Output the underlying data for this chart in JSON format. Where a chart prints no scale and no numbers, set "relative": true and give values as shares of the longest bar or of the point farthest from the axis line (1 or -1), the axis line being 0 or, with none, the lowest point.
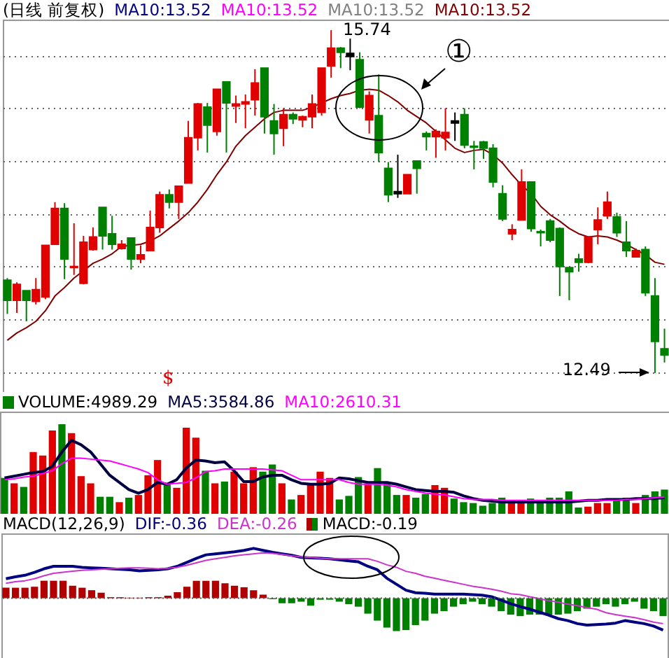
{
  "chart_data": [
    {
      "type": "candlestick",
      "title": "(日线 前复权)",
      "categories": [
        null,
        null,
        null,
        null,
        null,
        null,
        null,
        null,
        null,
        null,
        null,
        null,
        null,
        null,
        null,
        null,
        null,
        null,
        null,
        null,
        null,
        null,
        null,
        null,
        null,
        null,
        null,
        null,
        null,
        null,
        null,
        null,
        null,
        null,
        null,
        null,
        null,
        null,
        null,
        null,
        null,
        null,
        null,
        null,
        null,
        null,
        null,
        null,
        null,
        null,
        null,
        null,
        null,
        null,
        null,
        null,
        null,
        null,
        null,
        null,
        null,
        null,
        null,
        null,
        null,
        null,
        null,
        null,
        null,
        null
      ],
      "ohlc": [
        [
          13.37,
          13.39,
          13.05,
          13.18
        ],
        [
          13.18,
          13.35,
          13.06,
          13.33
        ],
        [
          13.27,
          13.27,
          12.98,
          13.18
        ],
        [
          13.17,
          13.39,
          13.14,
          13.28
        ],
        [
          13.21,
          13.7,
          13.19,
          13.7
        ],
        [
          13.71,
          14.11,
          13.71,
          14.05
        ],
        [
          14.05,
          14.1,
          13.38,
          13.57
        ],
        [
          13.49,
          13.91,
          13.42,
          13.5
        ],
        [
          13.34,
          13.79,
          13.33,
          13.73
        ],
        [
          13.66,
          13.87,
          13.65,
          13.78
        ],
        [
          14.06,
          14.06,
          13.66,
          13.79
        ],
        [
          13.81,
          13.98,
          13.66,
          13.71
        ],
        [
          13.67,
          13.75,
          13.66,
          13.71
        ],
        [
          13.77,
          13.77,
          13.47,
          13.57
        ],
        [
          13.57,
          13.7,
          13.53,
          13.61
        ],
        [
          13.65,
          14.03,
          13.65,
          13.87
        ],
        [
          13.87,
          14.21,
          13.82,
          14.18
        ],
        [
          14.18,
          14.23,
          14.05,
          14.11
        ],
        [
          14.11,
          14.26,
          13.95,
          14.26
        ],
        [
          14.29,
          14.88,
          14.29,
          14.72
        ],
        [
          14.72,
          15.05,
          14.6,
          15.04
        ],
        [
          15.01,
          15.05,
          14.58,
          14.84
        ],
        [
          14.78,
          15.18,
          14.74,
          15.18
        ],
        [
          15.25,
          15.25,
          14.58,
          15.05
        ],
        [
          15.02,
          15.12,
          14.86,
          15.04
        ],
        [
          15.04,
          15.13,
          14.81,
          15.06
        ],
        [
          15.08,
          15.37,
          14.93,
          15.24
        ],
        [
          15.38,
          15.38,
          14.76,
          14.92
        ],
        [
          14.88,
          15.04,
          14.56,
          14.76
        ],
        [
          14.81,
          15.0,
          14.64,
          14.94
        ],
        [
          14.94,
          14.96,
          14.85,
          14.9
        ],
        [
          14.89,
          14.93,
          14.82,
          14.92
        ],
        [
          14.92,
          15.13,
          14.81,
          15.04
        ],
        [
          14.96,
          15.38,
          14.93,
          15.38
        ],
        [
          15.4,
          15.74,
          15.29,
          15.57
        ],
        [
          15.57,
          15.58,
          15.38,
          15.53
        ],
        [
          15.52,
          15.66,
          15.36,
          15.49
        ],
        [
          15.46,
          15.53,
          15.0,
          15.01
        ],
        [
          14.89,
          15.16,
          14.76,
          15.12
        ],
        [
          14.93,
          15.32,
          14.49,
          14.58
        ],
        [
          14.43,
          14.49,
          14.11,
          14.18
        ],
        [
          14.21,
          14.56,
          14.15,
          14.19
        ],
        [
          14.19,
          14.37,
          14.19,
          14.37
        ],
        [
          14.5,
          14.5,
          14.19,
          14.43
        ],
        [
          14.76,
          14.78,
          14.6,
          14.73
        ],
        [
          14.73,
          14.8,
          14.53,
          14.78
        ],
        [
          14.72,
          15.0,
          14.6,
          14.77
        ],
        [
          14.88,
          14.96,
          14.69,
          14.86
        ],
        [
          14.94,
          15.0,
          14.62,
          14.65
        ],
        [
          14.64,
          14.69,
          14.42,
          14.63
        ],
        [
          14.68,
          14.69,
          14.52,
          14.62
        ],
        [
          14.62,
          14.66,
          14.25,
          14.3
        ],
        [
          14.19,
          14.27,
          13.93,
          13.95
        ],
        [
          13.81,
          13.9,
          13.75,
          13.85
        ],
        [
          13.94,
          14.42,
          13.94,
          14.3
        ],
        [
          14.3,
          14.3,
          13.83,
          13.86
        ],
        [
          13.83,
          13.85,
          13.69,
          13.82
        ],
        [
          13.93,
          13.95,
          13.73,
          13.75
        ],
        [
          13.86,
          13.87,
          13.22,
          13.5
        ],
        [
          13.49,
          13.49,
          13.18,
          13.45
        ],
        [
          13.57,
          13.62,
          13.45,
          13.54
        ],
        [
          13.54,
          13.78,
          13.53,
          13.78
        ],
        [
          13.85,
          14.06,
          13.71,
          13.94
        ],
        [
          13.98,
          14.21,
          13.95,
          14.11
        ],
        [
          13.97,
          14.01,
          13.78,
          13.82
        ],
        [
          13.73,
          13.93,
          13.59,
          13.65
        ],
        [
          13.59,
          13.67,
          13.59,
          13.65
        ],
        [
          13.66,
          13.69,
          13.22,
          13.25
        ],
        [
          13.22,
          13.39,
          12.49,
          12.79
        ],
        [
          12.72,
          12.91,
          12.59,
          12.66
        ]
      ],
      "colors": [
        "#008000",
        "#e00000",
        "#008000",
        "#e00000",
        "#e00000",
        "#e00000",
        "#008000",
        "#e00000",
        "#e00000",
        "#e00000",
        "#008000",
        "#008000",
        "#e00000",
        "#008000",
        "#e00000",
        "#e00000",
        "#e00000",
        "#008000",
        "#e00000",
        "#e00000",
        "#e00000",
        "#008000",
        "#e00000",
        "#008000",
        "#e00000",
        "#e00000",
        "#e00000",
        "#008000",
        "#008000",
        "#e00000",
        "#008000",
        "#e00000",
        "#e00000",
        "#e00000",
        "#e00000",
        "#008000",
        "#000000",
        "#008000",
        "#e00000",
        "#008000",
        "#008000",
        "#000000",
        "#e00000",
        "#008000",
        "#008000",
        "#e00000",
        "#e00000",
        "#000000",
        "#008000",
        "#008000",
        "#008000",
        "#008000",
        "#008000",
        "#e00000",
        "#e00000",
        "#008000",
        "#008000",
        "#008000",
        "#008000",
        "#008000",
        "#008000",
        "#e00000",
        "#e00000",
        "#e00000",
        "#008000",
        "#008000",
        "#e00000",
        "#008000",
        "#008000",
        "#008000"
      ],
      "series": [
        {
          "type": "line",
          "name": "MA10:13.52",
          "color": "#800000",
          "values": [
            12.8,
            12.87,
            12.92,
            12.98,
            13.08,
            13.22,
            13.3,
            13.39,
            13.46,
            13.53,
            13.57,
            13.62,
            13.69,
            13.7,
            13.71,
            13.74,
            13.79,
            13.86,
            13.93,
            14.01,
            14.11,
            14.23,
            14.37,
            14.49,
            14.64,
            14.74,
            14.82,
            14.9,
            14.96,
            14.98,
            14.98,
            14.98,
            15.01,
            15.05,
            15.09,
            15.12,
            15.14,
            15.17,
            15.18,
            15.17,
            15.12,
            15.06,
            14.98,
            14.92,
            14.86,
            14.78,
            14.7,
            14.62,
            14.58,
            14.6,
            14.61,
            14.56,
            14.48,
            14.37,
            14.27,
            14.19,
            14.07,
            13.99,
            13.93,
            13.86,
            13.81,
            13.78,
            13.79,
            13.78,
            13.75,
            13.71,
            13.66,
            13.61,
            13.54,
            13.52
          ]
        }
      ],
      "ylim": [
        12.31,
        15.84
      ],
      "yticks": [
        {
          "value": 12.5,
          "label": null
        },
        {
          "value": 13,
          "label": null
        },
        {
          "value": 13.5,
          "label": null
        },
        {
          "value": 14,
          "label": null
        },
        {
          "value": 14.5,
          "label": null
        },
        {
          "value": 15,
          "label": null
        },
        {
          "value": 15.5,
          "label": null
        }
      ],
      "grid": "y",
      "annotations": [
        "MA10:13.52",
        "MA10:13.52",
        "MA10:13.52",
        "15.74",
        "12.49",
        "①",
        "$"
      ]
    },
    {
      "type": "bar",
      "relative": true,
      "categories": [
        null,
        null,
        null,
        null,
        null,
        null,
        null,
        null,
        null,
        null,
        null,
        null,
        null,
        null,
        null,
        null,
        null,
        null,
        null,
        null,
        null,
        null,
        null,
        null,
        null,
        null,
        null,
        null,
        null,
        null,
        null,
        null,
        null,
        null,
        null,
        null,
        null,
        null,
        null,
        null,
        null,
        null,
        null,
        null,
        null,
        null,
        null,
        null,
        null,
        null,
        null,
        null,
        null,
        null,
        null,
        null,
        null,
        null,
        null,
        null,
        null,
        null,
        null,
        null,
        null,
        null,
        null,
        null,
        null,
        null
      ],
      "series": [
        {
          "type": "bar",
          "name": "VOLUME:4989.29",
          "colors": [
            "#008000",
            "#e00000",
            "#008000",
            "#e00000",
            "#e00000",
            "#e00000",
            "#008000",
            "#e00000",
            "#e00000",
            "#e00000",
            "#008000",
            "#008000",
            "#e00000",
            "#008000",
            "#e00000",
            "#e00000",
            "#e00000",
            "#008000",
            "#e00000",
            "#e00000",
            "#e00000",
            "#008000",
            "#e00000",
            "#008000",
            "#e00000",
            "#e00000",
            "#e00000",
            "#008000",
            "#008000",
            "#e00000",
            "#008000",
            "#e00000",
            "#e00000",
            "#e00000",
            "#e00000",
            "#008000",
            "#008000",
            "#008000",
            "#e00000",
            "#008000",
            "#008000",
            "#008000",
            "#e00000",
            "#008000",
            "#008000",
            "#e00000",
            "#e00000",
            "#008000",
            "#008000",
            "#008000",
            "#008000",
            "#008000",
            "#008000",
            "#e00000",
            "#e00000",
            "#008000",
            "#008000",
            "#008000",
            "#008000",
            "#008000",
            "#008000",
            "#e00000",
            "#e00000",
            "#e00000",
            "#008000",
            "#008000",
            "#e00000",
            "#008000",
            "#008000",
            "#008000"
          ],
          "values": [
            0.4,
            0.34,
            0.3,
            0.69,
            0.65,
            0.93,
            1.0,
            0.9,
            0.42,
            0.34,
            0.19,
            0.19,
            0.13,
            0.18,
            0.21,
            0.43,
            0.6,
            0.33,
            0.29,
            0.96,
            0.85,
            0.48,
            0.34,
            0.36,
            0.47,
            0.34,
            0.52,
            0.47,
            0.55,
            0.34,
            0.16,
            0.21,
            0.33,
            0.47,
            0.4,
            0.16,
            0.2,
            0.41,
            0.34,
            0.51,
            0.34,
            0.21,
            0.21,
            0.18,
            0.22,
            0.32,
            0.29,
            0.17,
            0.13,
            0.12,
            0.09,
            0.12,
            0.18,
            0.15,
            0.15,
            0.17,
            0.15,
            0.18,
            0.18,
            0.25,
            0.07,
            0.08,
            0.12,
            0.12,
            0.15,
            0.18,
            0.12,
            0.21,
            0.25,
            0.27
          ]
        },
        {
          "type": "line",
          "name": "MA5:3584.86",
          "color": "#000040",
          "values": [
            0.4,
            0.42,
            0.44,
            0.46,
            0.47,
            0.53,
            0.69,
            0.82,
            0.77,
            0.69,
            0.56,
            0.43,
            0.35,
            0.27,
            0.23,
            0.27,
            0.35,
            0.33,
            0.38,
            0.51,
            0.6,
            0.59,
            0.57,
            0.58,
            0.48,
            0.36,
            0.36,
            0.41,
            0.43,
            0.43,
            0.38,
            0.34,
            0.33,
            0.33,
            0.34,
            0.4,
            0.39,
            0.37,
            0.35,
            0.35,
            0.35,
            0.33,
            0.3,
            0.27,
            0.26,
            0.25,
            0.25,
            0.24,
            0.2,
            0.17,
            0.15,
            0.14,
            0.13,
            0.13,
            0.13,
            0.13,
            0.13,
            0.13,
            0.13,
            0.13,
            0.14,
            0.15,
            0.15,
            0.16,
            0.16,
            0.16,
            0.17,
            0.17,
            0.17,
            0.18
          ]
        },
        {
          "type": "line",
          "name": "MA10:2610.31",
          "color": "#ff00ff",
          "values": [
            0.38,
            0.39,
            0.41,
            0.42,
            0.45,
            0.48,
            0.56,
            0.62,
            0.62,
            0.61,
            0.6,
            0.59,
            0.56,
            0.53,
            0.5,
            0.46,
            0.38,
            0.33,
            0.34,
            0.35,
            0.4,
            0.47,
            0.48,
            0.5,
            0.5,
            0.5,
            0.5,
            0.5,
            0.49,
            0.48,
            0.43,
            0.38,
            0.38,
            0.38,
            0.38,
            0.38,
            0.35,
            0.33,
            0.33,
            0.33,
            0.32,
            0.3,
            0.27,
            0.25,
            0.23,
            0.22,
            0.21,
            0.19,
            0.17,
            0.16,
            0.16,
            0.16,
            0.15,
            0.15,
            0.15,
            0.15,
            0.15,
            0.15,
            0.15,
            0.15,
            0.15,
            0.15,
            0.15,
            0.15,
            0.15,
            0.16,
            0.16,
            0.17,
            0.18,
            0.19
          ]
        }
      ]
    },
    {
      "type": "bar",
      "relative": true,
      "title": "MACD(12,26,9)",
      "categories": [
        null,
        null,
        null,
        null,
        null,
        null,
        null,
        null,
        null,
        null,
        null,
        null,
        null,
        null,
        null,
        null,
        null,
        null,
        null,
        null,
        null,
        null,
        null,
        null,
        null,
        null,
        null,
        null,
        null,
        null,
        null,
        null,
        null,
        null,
        null,
        null,
        null,
        null,
        null,
        null,
        null,
        null,
        null,
        null,
        null,
        null,
        null,
        null,
        null,
        null,
        null,
        null,
        null,
        null,
        null,
        null,
        null,
        null,
        null,
        null,
        null,
        null,
        null,
        null,
        null,
        null,
        null,
        null,
        null,
        null
      ],
      "series": [
        {
          "type": "line",
          "name": "DIF:-0.36",
          "color": "#000080",
          "values": [
            0.39,
            0.43,
            0.46,
            0.52,
            0.59,
            0.64,
            0.64,
            0.64,
            0.62,
            0.61,
            0.6,
            0.59,
            0.58,
            0.57,
            0.55,
            0.56,
            0.57,
            0.59,
            0.64,
            0.72,
            0.8,
            0.87,
            0.89,
            0.91,
            0.93,
            0.96,
            1.0,
            0.96,
            0.92,
            0.89,
            0.86,
            0.82,
            0.81,
            0.8,
            0.79,
            0.77,
            0.75,
            0.73,
            0.64,
            0.57,
            0.4,
            0.28,
            0.16,
            0.11,
            0.1,
            0.08,
            0.08,
            0.08,
            0.08,
            0.07,
            0.06,
            0.03,
            -0.04,
            -0.11,
            -0.17,
            -0.22,
            -0.28,
            -0.34,
            -0.41,
            -0.45,
            -0.51,
            -0.54,
            -0.53,
            -0.52,
            -0.5,
            -0.45,
            -0.48,
            -0.51,
            -0.56,
            -0.64
          ]
        },
        {
          "type": "line",
          "name": "DEA:-0.26",
          "color": "#cc33cc",
          "values": [
            0.3,
            0.33,
            0.35,
            0.39,
            0.45,
            0.5,
            0.52,
            0.54,
            0.56,
            0.57,
            0.58,
            0.59,
            0.6,
            0.61,
            0.61,
            0.6,
            0.59,
            0.6,
            0.62,
            0.66,
            0.71,
            0.76,
            0.79,
            0.82,
            0.85,
            0.87,
            0.89,
            0.91,
            0.9,
            0.88,
            0.85,
            0.83,
            0.82,
            0.8,
            0.79,
            0.79,
            0.79,
            0.79,
            0.79,
            0.74,
            0.67,
            0.62,
            0.54,
            0.5,
            0.44,
            0.4,
            0.36,
            0.32,
            0.28,
            0.24,
            0.21,
            0.18,
            0.14,
            0.09,
            0.07,
            0.03,
            -0.01,
            -0.05,
            -0.08,
            -0.12,
            -0.15,
            -0.19,
            -0.22,
            -0.29,
            -0.33,
            -0.36,
            -0.39,
            -0.43,
            -0.48,
            -0.51
          ]
        },
        {
          "type": "bar",
          "name": "MACD:-0.19",
          "colors": [
            "#b00000",
            "#b00000",
            "#b00000",
            "#b00000",
            "#b00000",
            "#b00000",
            "#b00000",
            "#b00000",
            "#b00000",
            "#b00000",
            "#b00000",
            "#b00000",
            "#b00000",
            "#b00000",
            "#b00000",
            "#b00000",
            "#b00000",
            "#b00000",
            "#b00000",
            "#b00000",
            "#b00000",
            "#b00000",
            "#b00000",
            "#b00000",
            "#b00000",
            "#b00000",
            "#b00000",
            "#b00000",
            "#008000",
            "#008000",
            "#008000",
            "#008000",
            "#008000",
            "#008000",
            "#008000",
            "#008000",
            "#008000",
            "#008000",
            "#008000",
            "#008000",
            "#008000",
            "#008000",
            "#008000",
            "#008000",
            "#008000",
            "#008000",
            "#008000",
            "#008000",
            "#008000",
            "#008000",
            "#008000",
            "#008000",
            "#008000",
            "#008000",
            "#008000",
            "#008000",
            "#008000",
            "#008000",
            "#008000",
            "#008000",
            "#008000",
            "#008000",
            "#008000",
            "#008000",
            "#008000",
            "#008000",
            "#008000",
            "#008000",
            "#008000",
            "#008000"
          ],
          "values": [
            0.21,
            0.21,
            0.21,
            0.23,
            0.35,
            0.35,
            0.35,
            0.25,
            0.21,
            0.16,
            0.11,
            0.02,
            0.02,
            0.01,
            0.01,
            0.02,
            0.02,
            0.05,
            0.12,
            0.23,
            0.35,
            0.35,
            0.35,
            0.3,
            0.25,
            0.22,
            0.16,
            0.07,
            -0.02,
            -0.1,
            -0.1,
            -0.07,
            -0.15,
            -0.03,
            -0.03,
            -0.07,
            -0.12,
            -0.17,
            -0.31,
            -0.45,
            -0.59,
            -0.66,
            -0.64,
            -0.54,
            -0.45,
            -0.31,
            -0.26,
            -0.17,
            -0.12,
            -0.07,
            -0.12,
            -0.17,
            -0.26,
            -0.33,
            -0.36,
            -0.33,
            -0.33,
            -0.33,
            -0.33,
            -0.31,
            -0.26,
            -0.21,
            -0.17,
            -0.12,
            -0.17,
            -0.12,
            -0.07,
            -0.21,
            -0.26,
            -0.36
          ]
        }
      ],
      "ref_lines": [
        {
          "axis": "y",
          "value": 0,
          "color": "#555555",
          "line_style": "dotted"
        }
      ]
    }
  ]
}
